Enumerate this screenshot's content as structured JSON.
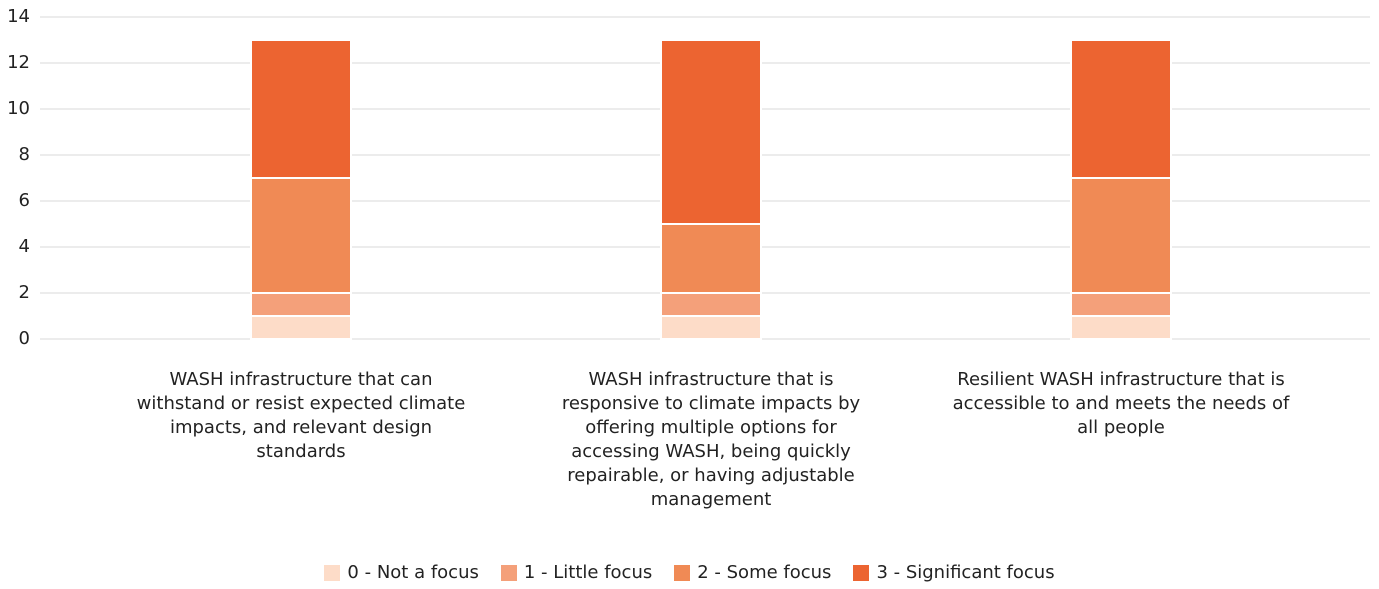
{
  "chart_data": {
    "type": "stacked_bar",
    "categories": [
      "WASH infrastructure that can withstand or resist expected climate impacts, and relevant design standards",
      "WASH infrastructure that is responsive to climate impacts by offering multiple options for accessing WASH, being quickly repairable, or having adjustable management",
      "Resilient WASH infrastructure that is accessible to and meets the needs of all people"
    ],
    "series": [
      {
        "name": "0 - Not a focus",
        "color": "#fddcc8",
        "values": [
          1,
          1,
          1
        ]
      },
      {
        "name": "1 - Little focus",
        "color": "#f4a07a",
        "values": [
          1,
          1,
          1
        ]
      },
      {
        "name": "2 - Some focus",
        "color": "#f08a55",
        "values": [
          5,
          3,
          5
        ]
      },
      {
        "name": "3 - Significant focus",
        "color": "#ec6431",
        "values": [
          6,
          8,
          6
        ]
      }
    ],
    "ylim": [
      0,
      14
    ],
    "yticks": [
      0,
      2,
      4,
      6,
      8,
      10,
      12,
      14
    ],
    "grid": true,
    "legend": "bottom"
  }
}
